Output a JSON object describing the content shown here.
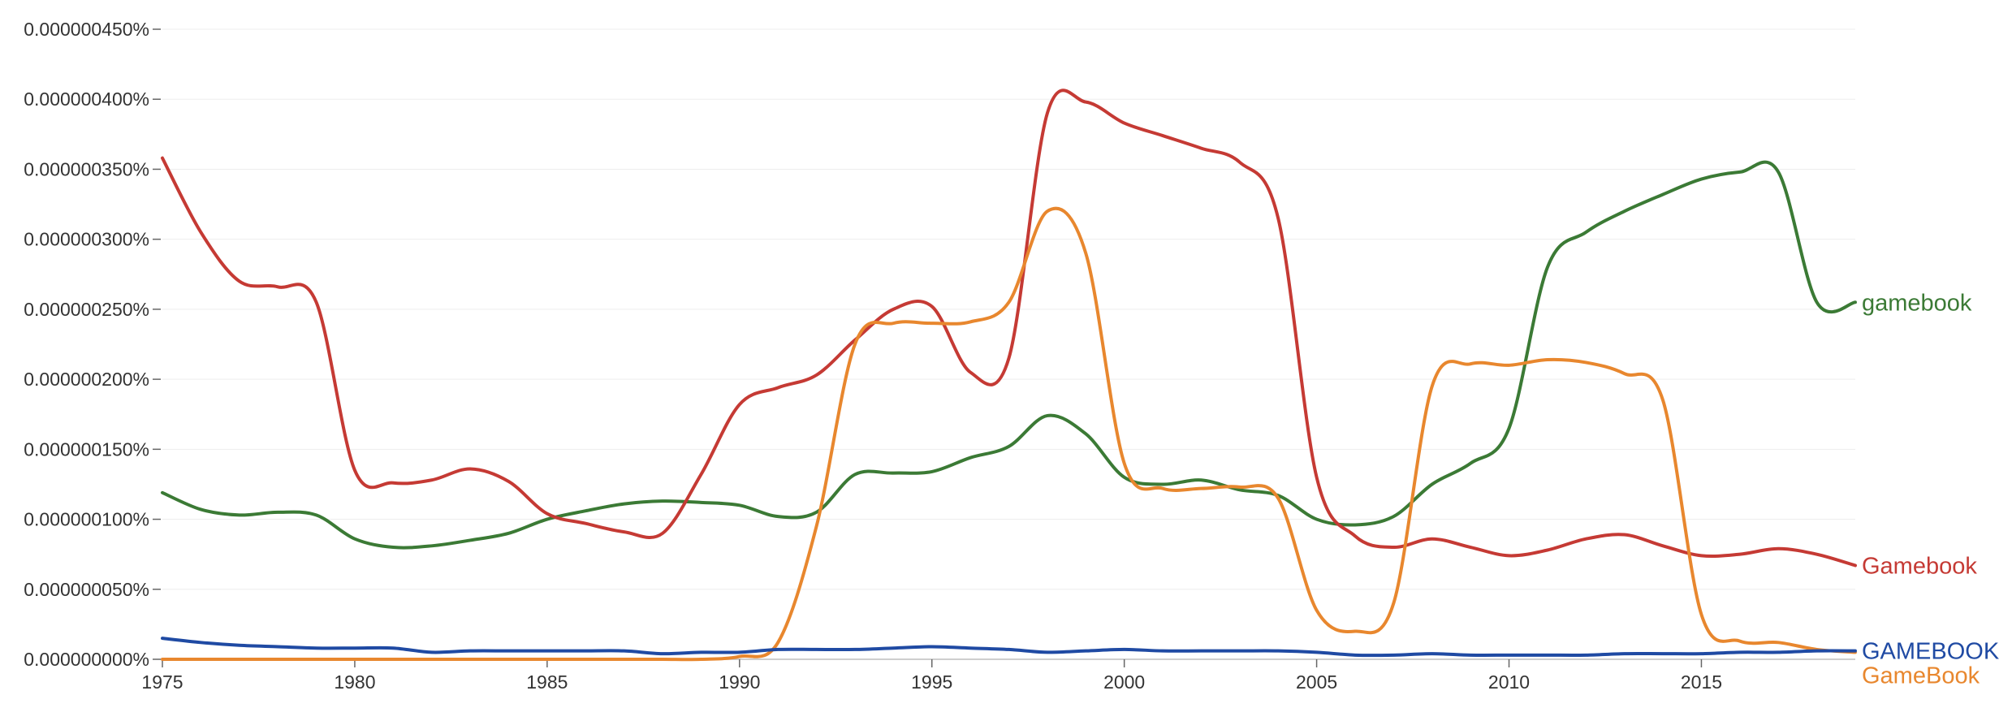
{
  "chart_data": {
    "type": "line",
    "title": "",
    "xlabel": "",
    "ylabel": "",
    "xlim": [
      1975,
      2019
    ],
    "ylim": [
      0,
      4.5e-07
    ],
    "grid": true,
    "legend_placement": "right-end-labels",
    "x_ticks": [
      1975,
      1980,
      1985,
      1990,
      1995,
      2000,
      2005,
      2010,
      2015
    ],
    "y_ticks": [
      {
        "value": 0,
        "label": "0.000000000%"
      },
      {
        "value": 5e-08,
        "label": "0.000000050%"
      },
      {
        "value": 1e-07,
        "label": "0.000000100%"
      },
      {
        "value": 1.5e-07,
        "label": "0.000000150%"
      },
      {
        "value": 2e-07,
        "label": "0.000000200%"
      },
      {
        "value": 2.5e-07,
        "label": "0.000000250%"
      },
      {
        "value": 3e-07,
        "label": "0.000000300%"
      },
      {
        "value": 3.5e-07,
        "label": "0.000000350%"
      },
      {
        "value": 4e-07,
        "label": "0.000000400%"
      },
      {
        "value": 4.5e-07,
        "label": "0.000000450%"
      }
    ],
    "x": [
      1975,
      1976,
      1977,
      1978,
      1979,
      1980,
      1981,
      1982,
      1983,
      1984,
      1985,
      1986,
      1987,
      1988,
      1989,
      1990,
      1991,
      1992,
      1993,
      1994,
      1995,
      1996,
      1997,
      1998,
      1999,
      2000,
      2001,
      2002,
      2003,
      2004,
      2005,
      2006,
      2007,
      2008,
      2009,
      2010,
      2011,
      2012,
      2013,
      2014,
      2015,
      2016,
      2017,
      2018,
      2019
    ],
    "series": [
      {
        "name": "gamebook",
        "color": "#3b7a35",
        "values": [
          1.19e-07,
          1.07e-07,
          1.03e-07,
          1.05e-07,
          1.03e-07,
          8.6e-08,
          8e-08,
          8.1e-08,
          8.5e-08,
          9e-08,
          1e-07,
          1.06e-07,
          1.11e-07,
          1.13e-07,
          1.12e-07,
          1.1e-07,
          1.02e-07,
          1.05e-07,
          1.32e-07,
          1.33e-07,
          1.34e-07,
          1.44e-07,
          1.52e-07,
          1.74e-07,
          1.61e-07,
          1.3e-07,
          1.25e-07,
          1.28e-07,
          1.21e-07,
          1.17e-07,
          1e-07,
          9.6e-08,
          1.02e-07,
          1.25e-07,
          1.4e-07,
          1.65e-07,
          2.8e-07,
          3.05e-07,
          3.2e-07,
          3.32e-07,
          3.43e-07,
          3.48e-07,
          3.48e-07,
          2.55e-07,
          2.55e-07
        ]
      },
      {
        "name": "Gamebook",
        "color": "#c53a34",
        "values": [
          3.58e-07,
          3.05e-07,
          2.7e-07,
          2.66e-07,
          2.55e-07,
          1.35e-07,
          1.26e-07,
          1.28e-07,
          1.36e-07,
          1.27e-07,
          1.04e-07,
          9.7e-08,
          9.1e-08,
          9e-08,
          1.32e-07,
          1.82e-07,
          1.94e-07,
          2.03e-07,
          2.28e-07,
          2.5e-07,
          2.52e-07,
          2.05e-07,
          2.15e-07,
          3.9e-07,
          3.98e-07,
          3.83e-07,
          3.74e-07,
          3.65e-07,
          3.55e-07,
          3.15e-07,
          1.3e-07,
          8.8e-08,
          8e-08,
          8.6e-08,
          8e-08,
          7.4e-08,
          7.8e-08,
          8.6e-08,
          8.9e-08,
          8.1e-08,
          7.4e-08,
          7.5e-08,
          7.9e-08,
          7.5e-08,
          6.7e-08
        ]
      },
      {
        "name": "GameBook",
        "color": "#e8872e",
        "values": [
          0,
          0,
          0,
          0,
          0,
          0,
          0,
          0,
          0,
          0,
          0,
          0,
          0,
          0,
          0,
          2e-09,
          1.2e-08,
          9.5e-08,
          2.25e-07,
          2.4e-07,
          2.4e-07,
          2.41e-07,
          2.55e-07,
          3.2e-07,
          2.9e-07,
          1.4e-07,
          1.22e-07,
          1.22e-07,
          1.23e-07,
          1.15e-07,
          3.5e-08,
          2e-08,
          4e-08,
          1.95e-07,
          2.11e-07,
          2.1e-07,
          2.14e-07,
          2.12e-07,
          2.04e-07,
          1.85e-07,
          3.2e-08,
          1.3e-08,
          1.2e-08,
          7e-09,
          5e-09
        ]
      },
      {
        "name": "GAMEBOOK",
        "color": "#1f4aa3",
        "values": [
          1.5e-08,
          1.2e-08,
          1e-08,
          9e-09,
          8e-09,
          8e-09,
          8e-09,
          5e-09,
          6e-09,
          6e-09,
          6e-09,
          6e-09,
          6e-09,
          4e-09,
          5e-09,
          5e-09,
          7e-09,
          7e-09,
          7e-09,
          8e-09,
          9e-09,
          8e-09,
          7e-09,
          5e-09,
          6e-09,
          7e-09,
          6e-09,
          6e-09,
          6e-09,
          6e-09,
          5e-09,
          3e-09,
          3e-09,
          4e-09,
          3e-09,
          3e-09,
          3e-09,
          3e-09,
          4e-09,
          4e-09,
          4e-09,
          5e-09,
          5e-09,
          6e-09,
          6e-09
        ]
      }
    ]
  }
}
